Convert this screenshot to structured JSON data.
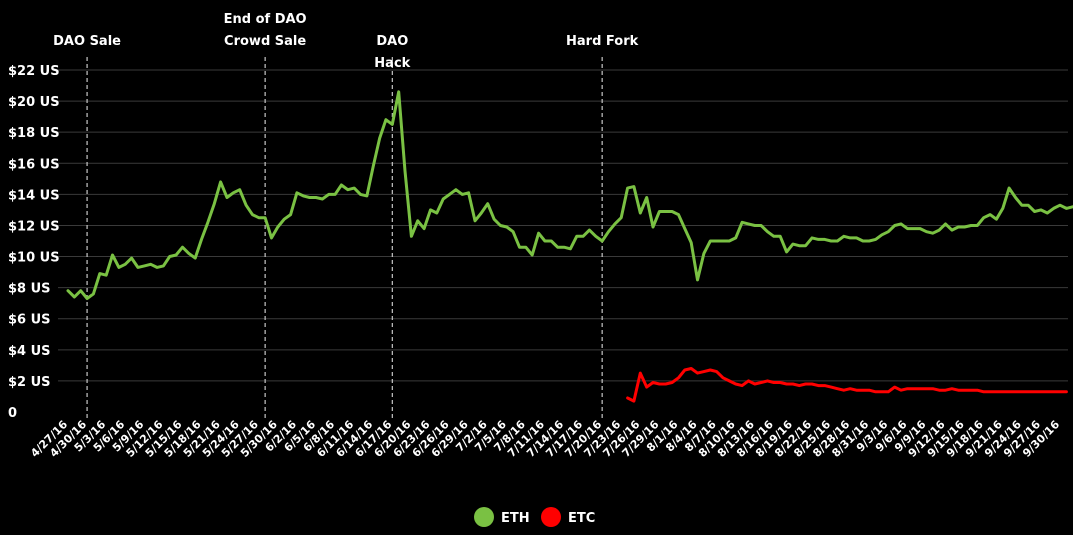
{
  "chart_data": {
    "type": "line",
    "title": "",
    "xlabel": "",
    "ylabel": "",
    "ylim": [
      0,
      22
    ],
    "y_ticks": [
      "0",
      "$2 US",
      "$4 US",
      "$6 US",
      "$8 US",
      "$10 US",
      "$12 US",
      "$14 US",
      "$16 US",
      "$18 US",
      "$20 US",
      "$22 US"
    ],
    "x_ticks": [
      "4/27/16",
      "4/30/16",
      "5/3/16",
      "5/6/16",
      "5/9/16",
      "5/12/16",
      "5/15/16",
      "5/18/16",
      "5/21/16",
      "5/24/16",
      "5/27/16",
      "5/30/16",
      "6/2/16",
      "6/5/16",
      "6/8/16",
      "6/11/16",
      "6/14/16",
      "6/17/16",
      "6/20/16",
      "6/23/16",
      "6/26/16",
      "6/29/16",
      "7/2/16",
      "7/5/16",
      "7/8/16",
      "7/11/16",
      "7/14/16",
      "7/17/16",
      "7/20/16",
      "7/23/16",
      "7/26/16",
      "7/29/16",
      "8/1/16",
      "8/4/16",
      "8/7/16",
      "8/10/16",
      "8/13/16",
      "8/16/16",
      "8/19/16",
      "8/22/16",
      "8/25/16",
      "8/28/16",
      "8/31/16",
      "9/3/16",
      "9/6/16",
      "9/9/16",
      "9/12/16",
      "9/15/16",
      "9/18/16",
      "9/21/16",
      "9/24/16",
      "9/27/16",
      "9/30/16"
    ],
    "grid": "horizontal",
    "legend_position": "bottom-center",
    "annotations": [
      {
        "lines": [
          "DAO Sale"
        ],
        "x": "4/30/16"
      },
      {
        "lines": [
          "End of DAO",
          "Crowd Sale"
        ],
        "x": "5/28/16"
      },
      {
        "lines": [
          "DAO",
          "Hack"
        ],
        "x": "6/17/16"
      },
      {
        "lines": [
          "Hard Fork"
        ],
        "x": "7/20/16"
      }
    ],
    "series": [
      {
        "name": "ETH",
        "color": "#7ac143",
        "start": "4/27/16",
        "values": [
          7.8,
          7.4,
          7.8,
          7.3,
          7.6,
          8.9,
          8.8,
          10.1,
          9.3,
          9.5,
          9.9,
          9.3,
          9.4,
          9.5,
          9.3,
          9.4,
          10.0,
          10.1,
          10.6,
          10.2,
          9.9,
          11.1,
          12.2,
          13.4,
          14.8,
          13.8,
          14.1,
          14.3,
          13.3,
          12.7,
          12.5,
          12.5,
          11.2,
          11.9,
          12.4,
          12.7,
          14.1,
          13.9,
          13.8,
          13.8,
          13.7,
          14.0,
          14.0,
          14.6,
          14.3,
          14.4,
          14.0,
          13.9,
          15.8,
          17.6,
          18.8,
          18.5,
          20.6,
          15.5,
          11.3,
          12.3,
          11.8,
          13.0,
          12.8,
          13.7,
          14.0,
          14.3,
          14.0,
          14.1,
          12.3,
          12.8,
          13.4,
          12.4,
          12.0,
          11.9,
          11.6,
          10.6,
          10.6,
          10.1,
          11.5,
          11.0,
          11.0,
          10.6,
          10.6,
          10.5,
          11.3,
          11.3,
          11.7,
          11.3,
          11.0,
          11.6,
          12.1,
          12.5,
          14.4,
          14.5,
          12.8,
          13.8,
          11.9,
          12.9,
          12.9,
          12.9,
          12.7,
          11.8,
          10.9,
          8.5,
          10.2,
          11.0,
          11.0,
          11.0,
          11.0,
          11.2,
          12.2,
          12.1,
          12.0,
          12.0,
          11.6,
          11.3,
          11.3,
          10.3,
          10.8,
          10.7,
          10.7,
          11.2,
          11.1,
          11.1,
          11.0,
          11.0,
          11.3,
          11.2,
          11.2,
          11.0,
          11.0,
          11.1,
          11.4,
          11.6,
          12.0,
          12.1,
          11.8,
          11.8,
          11.8,
          11.6,
          11.5,
          11.7,
          12.1,
          11.7,
          11.9,
          11.9,
          12.0,
          12.0,
          12.5,
          12.7,
          12.4,
          13.1,
          14.4,
          13.8,
          13.3,
          13.3,
          12.9,
          13.0,
          12.8,
          13.1,
          13.3,
          13.1,
          13.2
        ]
      },
      {
        "name": "ETC",
        "color": "#ff0000",
        "start": "7/24/16",
        "values": [
          0.9,
          0.7,
          2.5,
          1.6,
          1.9,
          1.8,
          1.8,
          1.9,
          2.2,
          2.7,
          2.8,
          2.5,
          2.6,
          2.7,
          2.6,
          2.2,
          2.0,
          1.8,
          1.7,
          2.0,
          1.8,
          1.9,
          2.0,
          1.9,
          1.9,
          1.8,
          1.8,
          1.7,
          1.8,
          1.8,
          1.7,
          1.7,
          1.6,
          1.5,
          1.4,
          1.5,
          1.4,
          1.4,
          1.4,
          1.3,
          1.3,
          1.3,
          1.6,
          1.4,
          1.5,
          1.5,
          1.5,
          1.5,
          1.5,
          1.4,
          1.4,
          1.5,
          1.4,
          1.4,
          1.4,
          1.4,
          1.3,
          1.3,
          1.3,
          1.3,
          1.3,
          1.3,
          1.3,
          1.3,
          1.3,
          1.3,
          1.3,
          1.3,
          1.3,
          1.3
        ]
      }
    ]
  }
}
